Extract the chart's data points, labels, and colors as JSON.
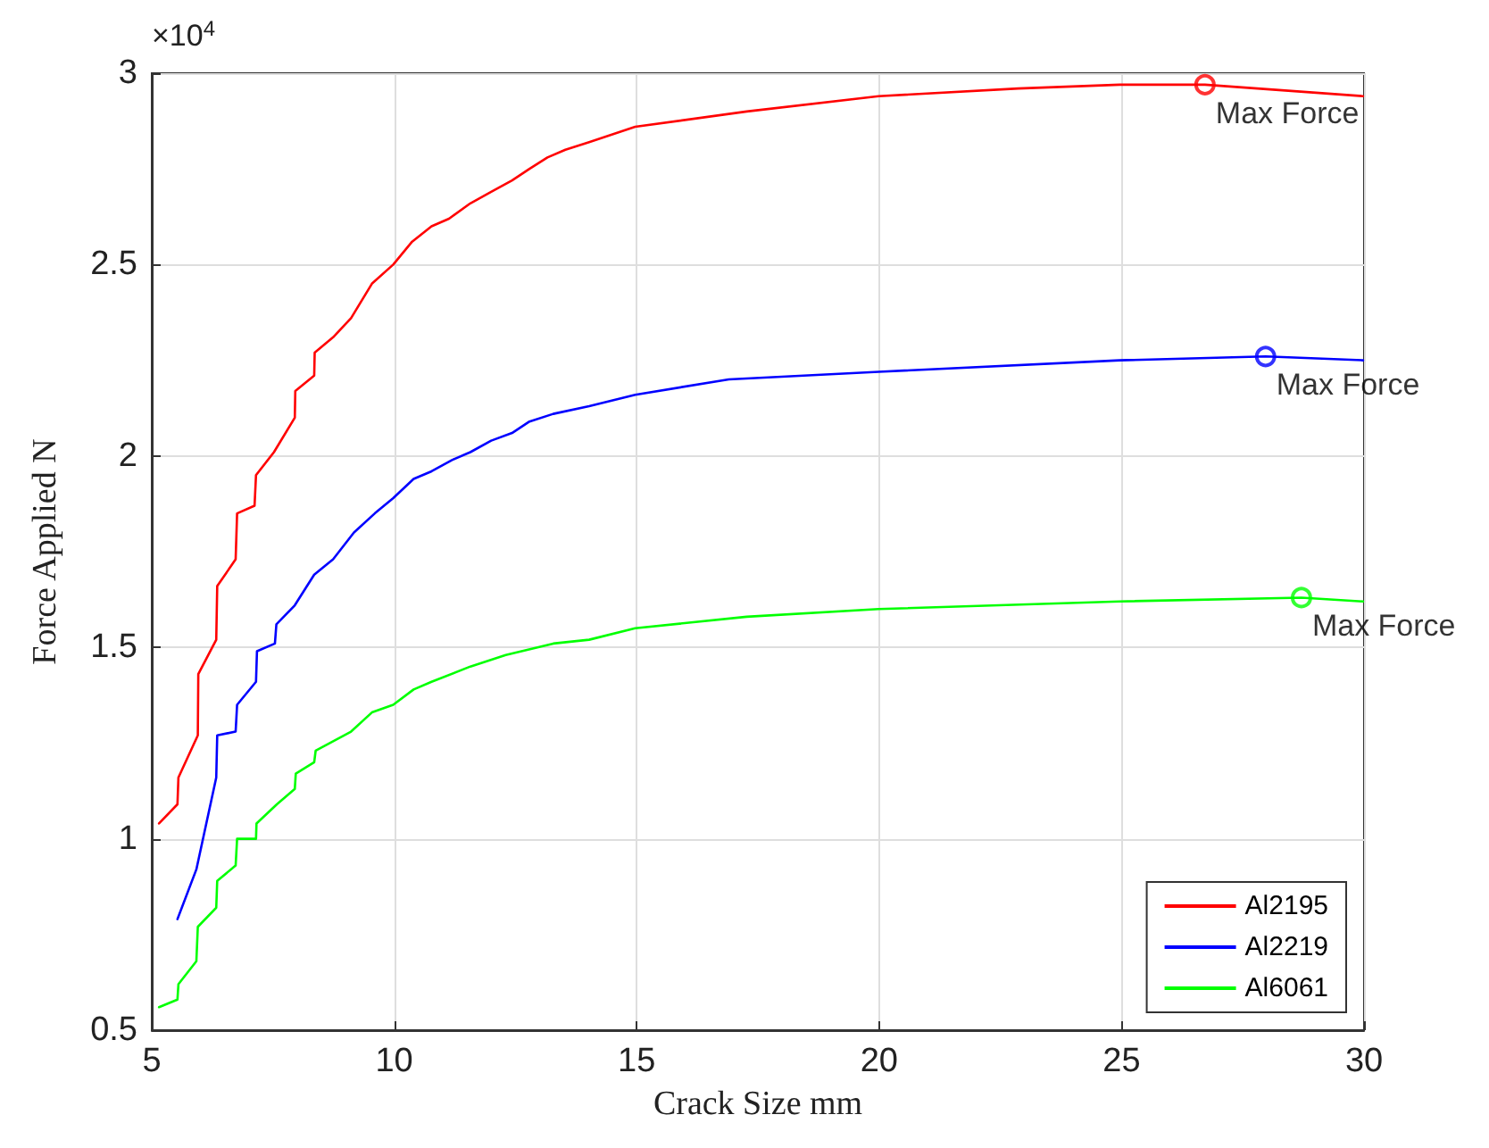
{
  "chart_data": {
    "type": "line",
    "xlabel": "Crack Size mm",
    "ylabel": "Force Applied N",
    "annotations": [
      "×10$^{4}$"
    ],
    "xlim": [
      5,
      30
    ],
    "xticks": [
      5,
      10,
      15,
      20,
      25,
      30
    ],
    "ylim": [
      0.5,
      3
    ],
    "yticks": [
      0.5,
      1,
      1.5,
      2,
      2.5,
      3
    ],
    "grid": true,
    "legend": "bottom right",
    "marker": "none",
    "line_style": "solid",
    "series": [
      {
        "name": "Al2195",
        "color": "#ff0000",
        "x": [
          5.15,
          5.53,
          5.55,
          5.95,
          5.96,
          6.33,
          6.35,
          6.73,
          6.76,
          7.12,
          7.15,
          7.52,
          7.95,
          7.96,
          8.35,
          8.36,
          8.74,
          9.11,
          9.54,
          9.98,
          10.37,
          10.77,
          11.13,
          11.57,
          12.0,
          12.43,
          12.79,
          13.16,
          13.53,
          14.02,
          14.97,
          17.27,
          19.99,
          22.87,
          24.96,
          26.72,
          29.98
        ],
        "values": [
          1.04,
          1.09,
          1.16,
          1.27,
          1.43,
          1.52,
          1.66,
          1.73,
          1.85,
          1.87,
          1.95,
          2.01,
          2.1,
          2.17,
          2.21,
          2.27,
          2.31,
          2.36,
          2.45,
          2.5,
          2.56,
          2.6,
          2.62,
          2.66,
          2.69,
          2.72,
          2.75,
          2.78,
          2.8,
          2.82,
          2.86,
          2.9,
          2.94,
          2.96,
          2.97,
          2.97,
          2.94
        ]
      },
      {
        "name": "Al2219",
        "color": "#0000ff",
        "x": [
          5.53,
          5.92,
          6.33,
          6.35,
          6.73,
          6.76,
          7.15,
          7.17,
          7.54,
          7.57,
          7.95,
          8.35,
          8.74,
          9.17,
          9.6,
          9.98,
          10.4,
          10.77,
          11.2,
          11.57,
          12.0,
          12.43,
          12.79,
          13.28,
          14.02,
          14.97,
          16.9,
          19.99,
          24.96,
          27.97,
          29.98
        ],
        "values": [
          0.79,
          0.92,
          1.16,
          1.27,
          1.28,
          1.35,
          1.41,
          1.49,
          1.51,
          1.56,
          1.61,
          1.69,
          1.73,
          1.8,
          1.85,
          1.89,
          1.94,
          1.96,
          1.99,
          2.01,
          2.04,
          2.06,
          2.09,
          2.11,
          2.13,
          2.16,
          2.2,
          2.22,
          2.25,
          2.26,
          2.25
        ]
      },
      {
        "name": "Al6061",
        "color": "#00ff00",
        "x": [
          5.15,
          5.53,
          5.55,
          5.92,
          5.95,
          6.33,
          6.35,
          6.73,
          6.76,
          7.15,
          7.16,
          7.58,
          7.95,
          7.97,
          8.35,
          8.38,
          9.11,
          9.54,
          9.98,
          10.4,
          10.77,
          11.57,
          12.3,
          13.28,
          14.02,
          14.97,
          17.27,
          19.99,
          24.96,
          28.71,
          29.98
        ],
        "values": [
          0.56,
          0.58,
          0.62,
          0.68,
          0.77,
          0.82,
          0.89,
          0.93,
          1.0,
          1.0,
          1.04,
          1.09,
          1.13,
          1.17,
          1.2,
          1.23,
          1.28,
          1.33,
          1.35,
          1.39,
          1.41,
          1.45,
          1.48,
          1.51,
          1.52,
          1.55,
          1.58,
          1.6,
          1.62,
          1.63,
          1.62
        ]
      },
      {
        "type": "scatter",
        "marker": "circle",
        "color": "#ff0000",
        "x": [
          26.72
        ],
        "values": [
          2.97
        ],
        "value_labels": [
          "Max Force"
        ]
      },
      {
        "type": "scatter",
        "marker": "circle",
        "color": "#0000ff",
        "x": [
          27.97
        ],
        "values": [
          2.26
        ],
        "value_labels": [
          "Max Force"
        ]
      },
      {
        "type": "scatter",
        "marker": "circle",
        "color": "#00ff00",
        "x": [
          28.71
        ],
        "values": [
          1.63
        ],
        "value_labels": [
          "Max Force"
        ]
      }
    ]
  }
}
